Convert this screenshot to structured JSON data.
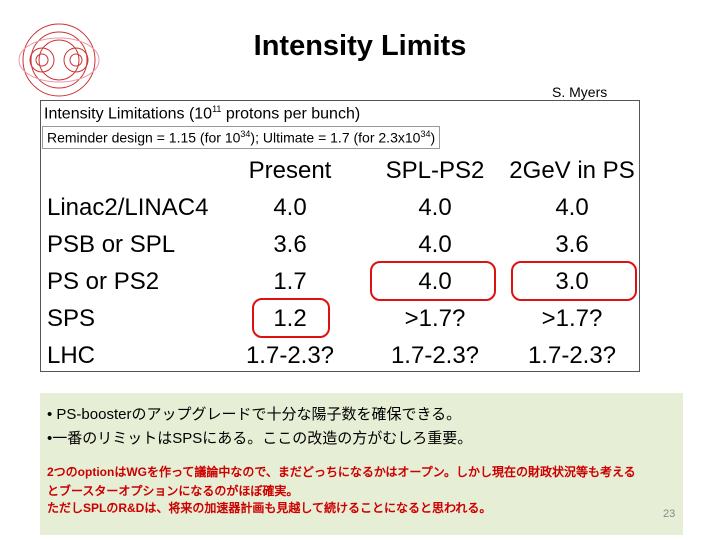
{
  "header": {
    "title": "Intensity Limits",
    "author": "S. Myers"
  },
  "table": {
    "caption": [
      "Intensity Limitations (10",
      "11",
      " protons per bunch)"
    ],
    "reminder": [
      "Reminder design = 1.15  (for 10",
      "34",
      "); Ultimate = 1.7   (for 2.3x10",
      "34",
      ")"
    ],
    "columns": [
      "Present",
      "SPL-PS2",
      "2GeV in PS"
    ],
    "rows": [
      [
        "Linac2/LINAC4",
        "4.0",
        "4.0",
        "4.0"
      ],
      [
        "PSB or SPL",
        "3.6",
        "4.0",
        "3.6"
      ],
      [
        "PS or PS2",
        "1.7",
        "4.0",
        "3.0"
      ],
      [
        "SPS",
        "1.2",
        ">1.7?",
        ">1.7?"
      ],
      [
        "LHC",
        "1.7-2.3?",
        "1.7-2.3?",
        "1.7-2.3?"
      ]
    ]
  },
  "notes": {
    "bullets": [
      "• PS-boosterのアップグレードで十分な陽子数を確保できる。",
      "•一番のリミットはSPSにある。ここの改造の方がむしろ重要。"
    ],
    "lines": [
      "2つのoptionはWGを作って議論中なので、まだどっちになるかはオープン。しかし現在の財政状況等も考える",
      "とブースターオプションになるのがほぼ確実。",
      "ただしSPLのR&Dは、将来の加速器計画も見越して続けることになると思われる。"
    ]
  },
  "footer": {
    "page": "23"
  }
}
